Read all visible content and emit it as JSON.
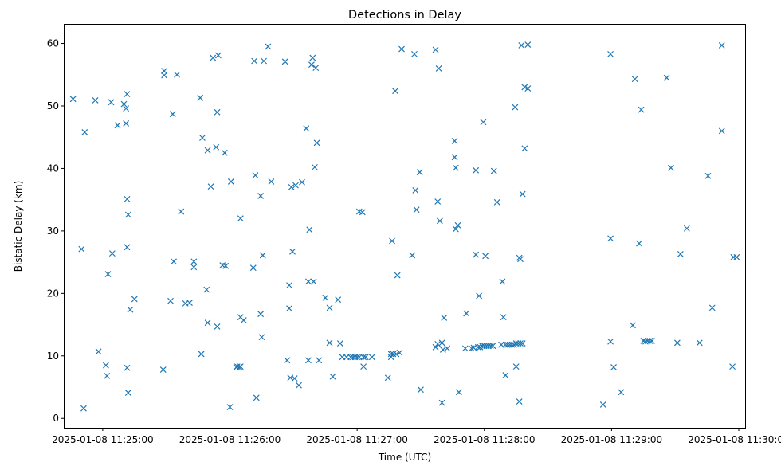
{
  "chart_data": {
    "type": "scatter",
    "title": "Detections in Delay",
    "xlabel": "Time (UTC)",
    "ylabel": "Bistatic Delay (km)",
    "x_unit": "seconds after 2025-01-08 11:25:00",
    "xlim": [
      -18,
      303
    ],
    "ylim": [
      -1.5,
      63
    ],
    "x_ticks": [
      {
        "value": 0,
        "label": "2025-01-08 11:25:00"
      },
      {
        "value": 60,
        "label": "2025-01-08 11:26:00"
      },
      {
        "value": 120,
        "label": "2025-01-08 11:27:00"
      },
      {
        "value": 180,
        "label": "2025-01-08 11:28:00"
      },
      {
        "value": 240,
        "label": "2025-01-08 11:29:00"
      },
      {
        "value": 300,
        "label": "2025-01-08 11:30:00"
      }
    ],
    "y_ticks": [
      0,
      10,
      20,
      30,
      40,
      50,
      60
    ],
    "marker": "x",
    "color": "#1f77b4",
    "grid": false,
    "points": [
      [
        -14,
        51.1
      ],
      [
        -10,
        27.1
      ],
      [
        -9,
        1.6
      ],
      [
        -8.5,
        45.8
      ],
      [
        -3.5,
        50.9
      ],
      [
        -2,
        10.7
      ],
      [
        1.5,
        8.5
      ],
      [
        2,
        6.8
      ],
      [
        2.5,
        23.1
      ],
      [
        4,
        50.6
      ],
      [
        4.5,
        26.4
      ],
      [
        7,
        46.9
      ],
      [
        10,
        50.3
      ],
      [
        11,
        49.6
      ],
      [
        11,
        47.2
      ],
      [
        11.5,
        51.9
      ],
      [
        11.5,
        35.1
      ],
      [
        11.5,
        27.4
      ],
      [
        11.5,
        8.1
      ],
      [
        12,
        32.6
      ],
      [
        12,
        4.1
      ],
      [
        13,
        17.4
      ],
      [
        15,
        19.1
      ],
      [
        28.5,
        7.8
      ],
      [
        29,
        55.6
      ],
      [
        29,
        54.9
      ],
      [
        32,
        18.8
      ],
      [
        33,
        48.7
      ],
      [
        33.5,
        25.1
      ],
      [
        35,
        55
      ],
      [
        37,
        33.1
      ],
      [
        39,
        18.4
      ],
      [
        41,
        18.5
      ],
      [
        43,
        25.1
      ],
      [
        43,
        24.2
      ],
      [
        46,
        51.3
      ],
      [
        46.5,
        10.3
      ],
      [
        47,
        44.9
      ],
      [
        49,
        20.6
      ],
      [
        49.5,
        42.9
      ],
      [
        49.5,
        15.3
      ],
      [
        51,
        37.1
      ],
      [
        52,
        57.7
      ],
      [
        53.5,
        43.4
      ],
      [
        54,
        49
      ],
      [
        54,
        14.7
      ],
      [
        54.5,
        58.1
      ],
      [
        56.5,
        24.5
      ],
      [
        57.5,
        42.5
      ],
      [
        58,
        24.4
      ],
      [
        60,
        1.8
      ],
      [
        60.5,
        37.9
      ],
      [
        63,
        8.2
      ],
      [
        63.5,
        8.3
      ],
      [
        64.5,
        8.2
      ],
      [
        65,
        8.3
      ],
      [
        65,
        32
      ],
      [
        65,
        16.2
      ],
      [
        66.5,
        15.7
      ],
      [
        71,
        24.1
      ],
      [
        71.5,
        57.2
      ],
      [
        72,
        38.9
      ],
      [
        72.5,
        3.3
      ],
      [
        74.5,
        35.6
      ],
      [
        74.5,
        16.7
      ],
      [
        75,
        13
      ],
      [
        75.5,
        26.1
      ],
      [
        76,
        57.2
      ],
      [
        78,
        59.5
      ],
      [
        79.5,
        37.9
      ],
      [
        86,
        57.1
      ],
      [
        87,
        9.3
      ],
      [
        88,
        21.3
      ],
      [
        88,
        17.6
      ],
      [
        88.5,
        6.5
      ],
      [
        89,
        37
      ],
      [
        89.5,
        26.7
      ],
      [
        90.5,
        6.4
      ],
      [
        91,
        37.3
      ],
      [
        92.5,
        5.3
      ],
      [
        94,
        37.8
      ],
      [
        96,
        46.4
      ],
      [
        97,
        9.3
      ],
      [
        97,
        21.9
      ],
      [
        97.5,
        30.2
      ],
      [
        98.5,
        56.6
      ],
      [
        99,
        57.7
      ],
      [
        99.5,
        21.9
      ],
      [
        100,
        40.2
      ],
      [
        100.5,
        56.1
      ],
      [
        101,
        44.1
      ],
      [
        102,
        9.3
      ],
      [
        105,
        19.3
      ],
      [
        107,
        12.1
      ],
      [
        107,
        17.7
      ],
      [
        108.5,
        6.7
      ],
      [
        111,
        19
      ],
      [
        112,
        12
      ],
      [
        113,
        9.8
      ],
      [
        115,
        9.8
      ],
      [
        117,
        9.8
      ],
      [
        118,
        9.8
      ],
      [
        119,
        9.8
      ],
      [
        120,
        9.8
      ],
      [
        121,
        9.8
      ],
      [
        121,
        33.1
      ],
      [
        122.5,
        33
      ],
      [
        123,
        8.3
      ],
      [
        123,
        9.8
      ],
      [
        124,
        9.8
      ],
      [
        127,
        9.8
      ],
      [
        134.5,
        6.5
      ],
      [
        136,
        10.3
      ],
      [
        136,
        9.8
      ],
      [
        136.5,
        28.4
      ],
      [
        137,
        10.3
      ],
      [
        138,
        52.4
      ],
      [
        138.5,
        10.3
      ],
      [
        139,
        22.9
      ],
      [
        140,
        10.5
      ],
      [
        141,
        59.1
      ],
      [
        146,
        26.1
      ],
      [
        147,
        58.3
      ],
      [
        147.5,
        36.5
      ],
      [
        148,
        33.4
      ],
      [
        149.5,
        39.4
      ],
      [
        150,
        4.6
      ],
      [
        157,
        59
      ],
      [
        157,
        11.4
      ],
      [
        158,
        34.7
      ],
      [
        158,
        11.9
      ],
      [
        158.5,
        56
      ],
      [
        159,
        31.6
      ],
      [
        160,
        2.5
      ],
      [
        160,
        12.1
      ],
      [
        160.5,
        11
      ],
      [
        161,
        16.1
      ],
      [
        162.5,
        11.2
      ],
      [
        166,
        44.4
      ],
      [
        166,
        41.8
      ],
      [
        166.5,
        30.3
      ],
      [
        166.5,
        40.1
      ],
      [
        167.5,
        30.9
      ],
      [
        168,
        4.2
      ],
      [
        171,
        11.2
      ],
      [
        171.5,
        16.8
      ],
      [
        174,
        11.2
      ],
      [
        175,
        11.3
      ],
      [
        176,
        26.2
      ],
      [
        176,
        39.7
      ],
      [
        177,
        11.4
      ],
      [
        177.5,
        19.6
      ],
      [
        178,
        11.4
      ],
      [
        179,
        11.6
      ],
      [
        179.5,
        47.4
      ],
      [
        180,
        11.6
      ],
      [
        180.5,
        26
      ],
      [
        181,
        11.6
      ],
      [
        182,
        11.6
      ],
      [
        183,
        11.6
      ],
      [
        184,
        11.6
      ],
      [
        184.5,
        39.6
      ],
      [
        186,
        34.6
      ],
      [
        188,
        11.8
      ],
      [
        188.5,
        21.9
      ],
      [
        189,
        16.2
      ],
      [
        190,
        6.9
      ],
      [
        190,
        11.8
      ],
      [
        191,
        11.8
      ],
      [
        192,
        11.8
      ],
      [
        193,
        11.8
      ],
      [
        194,
        11.8
      ],
      [
        194.5,
        49.8
      ],
      [
        195,
        12
      ],
      [
        195,
        8.3
      ],
      [
        196,
        12
      ],
      [
        196.5,
        25.7
      ],
      [
        196.5,
        2.7
      ],
      [
        197,
        12
      ],
      [
        197,
        25.5
      ],
      [
        197.5,
        59.7
      ],
      [
        198,
        12
      ],
      [
        198,
        35.9
      ],
      [
        199,
        43.2
      ],
      [
        199,
        53
      ],
      [
        200.5,
        59.8
      ],
      [
        200.5,
        52.8
      ],
      [
        236,
        2.2
      ],
      [
        239.5,
        58.3
      ],
      [
        239.5,
        28.8
      ],
      [
        239.5,
        12.3
      ],
      [
        241,
        8.2
      ],
      [
        244.5,
        4.2
      ],
      [
        250,
        14.9
      ],
      [
        251,
        54.3
      ],
      [
        253,
        28
      ],
      [
        254,
        49.4
      ],
      [
        255,
        12.4
      ],
      [
        256,
        12.3
      ],
      [
        257,
        12.4
      ],
      [
        258,
        12.4
      ],
      [
        259,
        12.4
      ],
      [
        266,
        54.5
      ],
      [
        268,
        40.1
      ],
      [
        271,
        12.1
      ],
      [
        272.5,
        26.3
      ],
      [
        275.5,
        30.4
      ],
      [
        281.5,
        12.1
      ],
      [
        285.5,
        38.8
      ],
      [
        287.5,
        17.7
      ],
      [
        292,
        46
      ],
      [
        292,
        59.7
      ],
      [
        297,
        8.3
      ],
      [
        297.5,
        25.8
      ],
      [
        299,
        25.8
      ]
    ]
  }
}
